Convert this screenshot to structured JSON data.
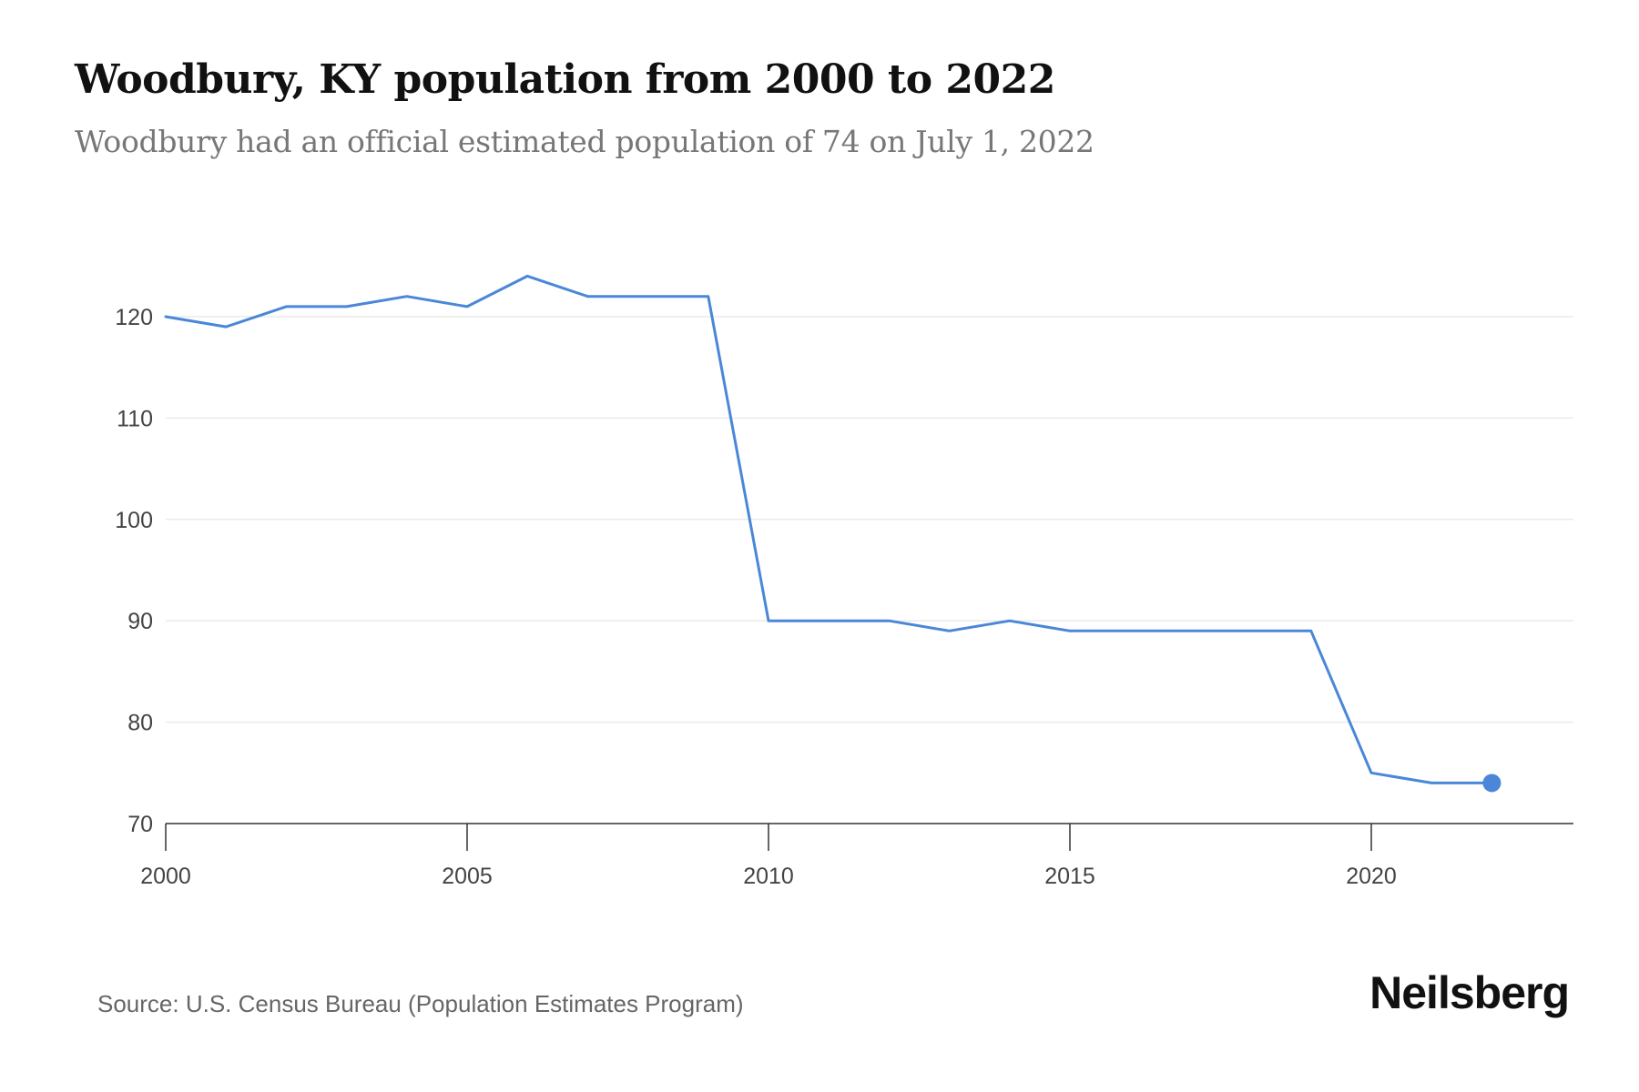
{
  "header": {
    "title": "Woodbury, KY population from 2000 to 2022",
    "subtitle": "Woodbury had an official estimated population of 74 on July 1, 2022"
  },
  "footer": {
    "source": "Source: U.S. Census Bureau (Population Estimates Program)",
    "brand": "Neilsberg"
  },
  "colors": {
    "line": "#4a87d8",
    "marker": "#4a87d8",
    "grid": "#ebebeb",
    "axis": "#333333"
  },
  "chart_data": {
    "type": "line",
    "title": "Woodbury, KY population from 2000 to 2022",
    "subtitle": "Woodbury had an official estimated population of 74 on July 1, 2022",
    "xlabel": "",
    "ylabel": "",
    "x": [
      2000,
      2001,
      2002,
      2003,
      2004,
      2005,
      2006,
      2007,
      2008,
      2009,
      2010,
      2011,
      2012,
      2013,
      2014,
      2015,
      2016,
      2017,
      2018,
      2019,
      2020,
      2021,
      2022
    ],
    "series": [
      {
        "name": "Population",
        "values": [
          120,
          119,
          121,
          121,
          122,
          121,
          124,
          122,
          122,
          122,
          90,
          90,
          90,
          89,
          90,
          89,
          89,
          89,
          89,
          89,
          75,
          74,
          74
        ]
      }
    ],
    "xlim": [
      2000,
      2023.4
    ],
    "ylim": [
      70,
      124
    ],
    "x_ticks": [
      2000,
      2005,
      2010,
      2015,
      2020
    ],
    "y_ticks": [
      70,
      80,
      90,
      100,
      110,
      120
    ],
    "highlight_last_point": true,
    "grid": "horizontal"
  }
}
